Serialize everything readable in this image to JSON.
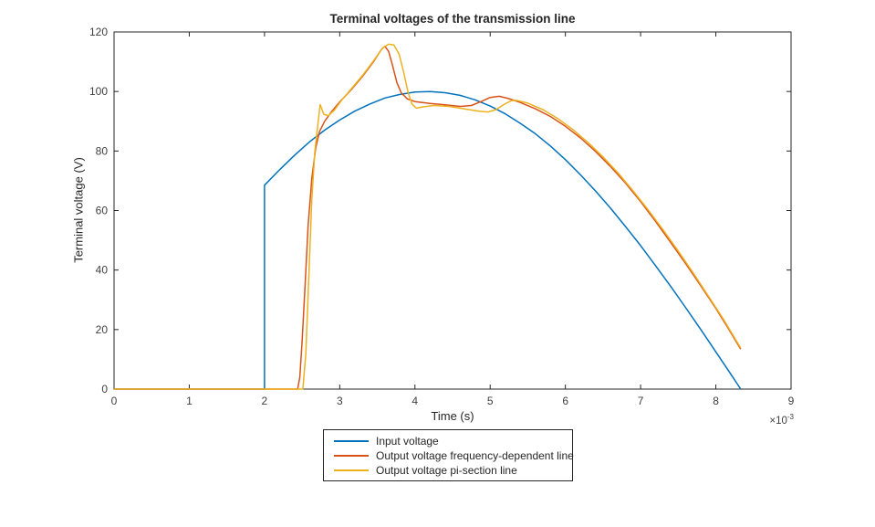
{
  "figure": {
    "title": "Terminal voltages of the transmission line",
    "background_color": "#ffffff",
    "axis_color": "#262626"
  },
  "chart_data": {
    "type": "line",
    "title": "Terminal voltages of the transmission line",
    "xlabel": "Time (s)",
    "ylabel": "Terminal voltage (V)",
    "x_exponent_base": "×10",
    "x_exponent_power": "-3",
    "x_units_note": "x values in units of 1e-3 seconds",
    "xlim": [
      0,
      9
    ],
    "ylim": [
      0,
      120
    ],
    "xticks": [
      0,
      1,
      2,
      3,
      4,
      5,
      6,
      7,
      8,
      9
    ],
    "yticks": [
      0,
      20,
      40,
      60,
      80,
      100,
      120
    ],
    "grid": false,
    "box": true,
    "tick_direction": "in",
    "legend_position": "below-plot-center",
    "axis_color": "#262626",
    "series": [
      {
        "name": "Input voltage",
        "color": "#0072BD",
        "points": [
          [
            0,
            0
          ],
          [
            2,
            0
          ],
          [
            2,
            68.5
          ],
          [
            2.2,
            73.7
          ],
          [
            2.4,
            78.6
          ],
          [
            2.6,
            83.1
          ],
          [
            2.8,
            87.0
          ],
          [
            3.0,
            90.4
          ],
          [
            3.2,
            93.4
          ],
          [
            3.4,
            95.8
          ],
          [
            3.6,
            97.8
          ],
          [
            3.8,
            99.0
          ],
          [
            4.0,
            99.8
          ],
          [
            4.2,
            100
          ],
          [
            4.4,
            99.6
          ],
          [
            4.6,
            98.7
          ],
          [
            4.8,
            97.2
          ],
          [
            5.0,
            95.1
          ],
          [
            5.2,
            92.5
          ],
          [
            5.4,
            89.3
          ],
          [
            5.6,
            85.8
          ],
          [
            5.8,
            81.7
          ],
          [
            6.0,
            77.1
          ],
          [
            6.2,
            72.0
          ],
          [
            6.4,
            66.6
          ],
          [
            6.6,
            60.8
          ],
          [
            6.8,
            54.6
          ],
          [
            7.0,
            48.2
          ],
          [
            7.2,
            41.4
          ],
          [
            7.4,
            34.5
          ],
          [
            7.6,
            27.3
          ],
          [
            7.8,
            20.0
          ],
          [
            8.0,
            12.5
          ],
          [
            8.2,
            5.0
          ],
          [
            8.33,
            0
          ]
        ]
      },
      {
        "name": "Output voltage frequency-dependent line",
        "color": "#D95319",
        "points": [
          [
            0,
            0
          ],
          [
            2.44,
            0
          ],
          [
            2.47,
            4
          ],
          [
            2.5,
            16
          ],
          [
            2.54,
            35
          ],
          [
            2.58,
            55
          ],
          [
            2.63,
            71
          ],
          [
            2.68,
            81
          ],
          [
            2.73,
            86.5
          ],
          [
            2.8,
            90
          ],
          [
            2.9,
            93.5
          ],
          [
            3.0,
            96.5
          ],
          [
            3.15,
            100.5
          ],
          [
            3.3,
            105
          ],
          [
            3.45,
            110
          ],
          [
            3.55,
            114
          ],
          [
            3.6,
            115.2
          ],
          [
            3.65,
            113.5
          ],
          [
            3.7,
            109
          ],
          [
            3.76,
            103
          ],
          [
            3.82,
            99.5
          ],
          [
            3.9,
            97.5
          ],
          [
            4.0,
            96.6
          ],
          [
            4.2,
            96.0
          ],
          [
            4.4,
            95.5
          ],
          [
            4.6,
            95.0
          ],
          [
            4.75,
            95.3
          ],
          [
            4.88,
            96.6
          ],
          [
            5.0,
            98.0
          ],
          [
            5.12,
            98.4
          ],
          [
            5.25,
            97.6
          ],
          [
            5.4,
            96.3
          ],
          [
            5.6,
            94.2
          ],
          [
            5.8,
            91.6
          ],
          [
            6.0,
            88.3
          ],
          [
            6.2,
            84.4
          ],
          [
            6.4,
            79.9
          ],
          [
            6.6,
            74.8
          ],
          [
            6.8,
            69.2
          ],
          [
            7.0,
            63.0
          ],
          [
            7.2,
            56.3
          ],
          [
            7.4,
            49.3
          ],
          [
            7.6,
            42.1
          ],
          [
            7.8,
            34.7
          ],
          [
            8.0,
            27.1
          ],
          [
            8.17,
            20.2
          ],
          [
            8.33,
            13.4
          ]
        ]
      },
      {
        "name": "Output voltage pi-section line",
        "color": "#EDB120",
        "points": [
          [
            0,
            0
          ],
          [
            2.51,
            0
          ],
          [
            2.55,
            12
          ],
          [
            2.59,
            38
          ],
          [
            2.63,
            64
          ],
          [
            2.67,
            80
          ],
          [
            2.71,
            89
          ],
          [
            2.74,
            95.6
          ],
          [
            2.79,
            92.3
          ],
          [
            2.85,
            91.9
          ],
          [
            2.93,
            93.8
          ],
          [
            3.02,
            96.9
          ],
          [
            3.15,
            100.8
          ],
          [
            3.3,
            105.3
          ],
          [
            3.45,
            110.3
          ],
          [
            3.57,
            114.6
          ],
          [
            3.65,
            115.9
          ],
          [
            3.72,
            115.6
          ],
          [
            3.79,
            112.5
          ],
          [
            3.85,
            106.5
          ],
          [
            3.91,
            99.5
          ],
          [
            3.96,
            95.8
          ],
          [
            4.02,
            94.4
          ],
          [
            4.1,
            94.8
          ],
          [
            4.25,
            95.3
          ],
          [
            4.45,
            95.0
          ],
          [
            4.65,
            94.2
          ],
          [
            4.85,
            93.4
          ],
          [
            4.97,
            93.1
          ],
          [
            5.08,
            93.9
          ],
          [
            5.18,
            95.6
          ],
          [
            5.28,
            96.9
          ],
          [
            5.35,
            97.0
          ],
          [
            5.5,
            96.1
          ],
          [
            5.7,
            93.9
          ],
          [
            5.9,
            90.9
          ],
          [
            6.1,
            87.2
          ],
          [
            6.3,
            82.9
          ],
          [
            6.5,
            78.0
          ],
          [
            6.7,
            72.6
          ],
          [
            6.9,
            66.6
          ],
          [
            7.1,
            60.2
          ],
          [
            7.3,
            53.5
          ],
          [
            7.5,
            46.4
          ],
          [
            7.7,
            39.0
          ],
          [
            7.9,
            31.3
          ],
          [
            8.1,
            23.5
          ],
          [
            8.33,
            13.8
          ]
        ]
      }
    ]
  },
  "legend": {
    "items": [
      {
        "label": "Input voltage",
        "color": "#0072BD"
      },
      {
        "label": "Output voltage frequency-dependent line",
        "color": "#D95319"
      },
      {
        "label": "Output voltage pi-section line",
        "color": "#EDB120"
      }
    ]
  }
}
